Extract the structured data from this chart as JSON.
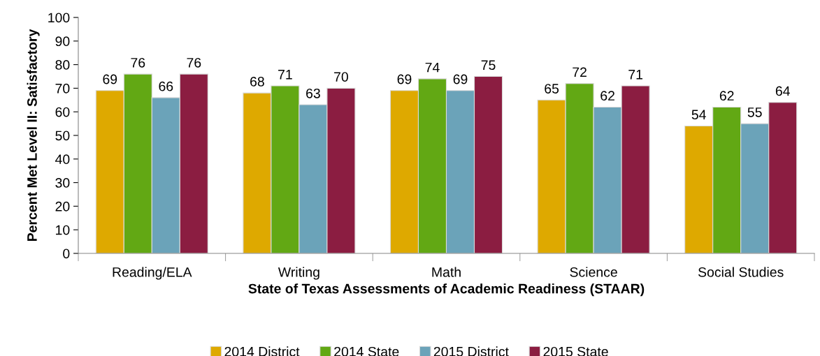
{
  "chart_data": {
    "type": "bar",
    "xlabel": "State of Texas Assessments of Academic Readiness (STAAR)",
    "ylabel": "Percent Met Level II: Satisfactory",
    "categories": [
      "Reading/ELA",
      "Writing",
      "Math",
      "Science",
      "Social Studies"
    ],
    "series": [
      {
        "name": "2014 District",
        "color": "#dea900",
        "values": [
          69,
          68,
          69,
          65,
          54
        ]
      },
      {
        "name": "2014 State",
        "color": "#62a814",
        "values": [
          76,
          71,
          74,
          72,
          62
        ]
      },
      {
        "name": "2015 District",
        "color": "#6ba3b9",
        "values": [
          66,
          63,
          69,
          62,
          55
        ]
      },
      {
        "name": "2015 State",
        "color": "#8b1d41",
        "values": [
          76,
          70,
          75,
          71,
          64
        ]
      }
    ],
    "ylim": [
      0,
      100
    ],
    "yticks": [
      0,
      10,
      20,
      30,
      40,
      50,
      60,
      70,
      80,
      90,
      100
    ],
    "data_labels": true,
    "grid": false,
    "legend": "bottom"
  }
}
